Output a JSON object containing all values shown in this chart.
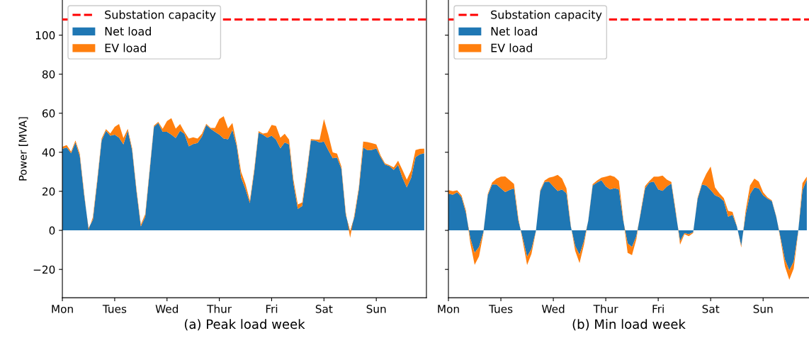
{
  "chart_data": [
    {
      "type": "area",
      "stacked": true,
      "xlabel": "(a) Peak load week",
      "ylabel": "Power [MVA]",
      "ylim": [
        -34.5,
        118
      ],
      "categories": [
        "Mon",
        null,
        null,
        null,
        null,
        null,
        null,
        null,
        null,
        null,
        null,
        null,
        "Tues",
        null,
        null,
        null,
        null,
        null,
        null,
        null,
        null,
        null,
        null,
        null,
        "Wed",
        null,
        null,
        null,
        null,
        null,
        null,
        null,
        null,
        null,
        null,
        null,
        "Thur",
        null,
        null,
        null,
        null,
        null,
        null,
        null,
        null,
        null,
        null,
        null,
        "Fri",
        null,
        null,
        null,
        null,
        null,
        null,
        null,
        null,
        null,
        null,
        null,
        "Sat",
        null,
        null,
        null,
        null,
        null,
        null,
        null,
        null,
        null,
        null,
        null,
        "Sun",
        null,
        null,
        null,
        null,
        null,
        null,
        null,
        null,
        null,
        null,
        null
      ],
      "yticks": [
        {
          "value": -20,
          "label": "−20"
        },
        0,
        20,
        40,
        60,
        80,
        100
      ],
      "legend": "top left",
      "ref_lines": [
        {
          "axis": "y",
          "value": 108,
          "label": "Substation capacity",
          "color": "#ff0000",
          "line_style": "dashed"
        }
      ],
      "series": [
        {
          "name": "Net load",
          "color": "#1f77b4",
          "values": [
            41.8,
            42.5,
            39.5,
            45,
            38,
            18,
            1,
            5.5,
            25,
            46,
            51,
            48.5,
            49,
            47.5,
            44,
            51,
            41,
            20,
            2,
            7,
            30,
            53,
            55,
            50.5,
            50.5,
            49,
            47.3,
            51,
            49.5,
            43,
            44.2,
            44.8,
            48,
            54,
            52,
            50.5,
            49,
            47,
            46.7,
            51.5,
            43,
            27,
            21.2,
            14,
            30,
            50,
            49,
            47.5,
            48.5,
            46.5,
            42,
            45,
            44,
            24,
            11,
            12.5,
            28,
            46,
            46,
            45,
            45.5,
            41,
            37,
            37.3,
            31.5,
            8,
            -0.5,
            7,
            21,
            42.5,
            41,
            41.2,
            42,
            37.5,
            33.7,
            33,
            31,
            33.5,
            27,
            22,
            27,
            37.5,
            39,
            39.5
          ]
        },
        {
          "name": "EV load",
          "color": "#ff7f0e",
          "values": [
            1.1,
            1.2,
            0.8,
            1,
            1.2,
            1.1,
            -1,
            1.3,
            1.2,
            1,
            0.8,
            1.2,
            4,
            7,
            3.3,
            1,
            1,
            1.1,
            1,
            1.3,
            1,
            0.7,
            0.6,
            1.5,
            5.5,
            8.5,
            4.8,
            3.5,
            1,
            4,
            3.5,
            2.2,
            1.5,
            0.6,
            0.5,
            2,
            8,
            11.5,
            5.5,
            3.5,
            1.2,
            3,
            2.6,
            1.3,
            1.2,
            0.8,
            0.6,
            2.5,
            5.5,
            7,
            5.5,
            4.5,
            2.5,
            2,
            2.3,
            1.8,
            1.5,
            0.8,
            0.5,
            1.5,
            11.5,
            8,
            3,
            2,
            1.2,
            1.3,
            -3.3,
            1.3,
            1.2,
            3,
            4.2,
            3.5,
            2,
            0.8,
            0.6,
            0.4,
            1.2,
            2.2,
            4,
            4,
            3.7,
            3.6,
            2.8,
            2.4
          ]
        }
      ]
    },
    {
      "type": "area",
      "stacked": true,
      "xlabel": "(b) Min load week",
      "ylim": [
        -34.5,
        118
      ],
      "tick_labels": "x",
      "categories": [
        "Mon",
        null,
        null,
        null,
        null,
        null,
        null,
        null,
        null,
        null,
        null,
        null,
        "Tues",
        null,
        null,
        null,
        null,
        null,
        null,
        null,
        null,
        null,
        null,
        null,
        "Wed",
        null,
        null,
        null,
        null,
        null,
        null,
        null,
        null,
        null,
        null,
        null,
        "Thur",
        null,
        null,
        null,
        null,
        null,
        null,
        null,
        null,
        null,
        null,
        null,
        "Fri",
        null,
        null,
        null,
        null,
        null,
        null,
        null,
        null,
        null,
        null,
        null,
        "Sat",
        null,
        null,
        null,
        null,
        null,
        null,
        null,
        null,
        null,
        null,
        null,
        "Sun",
        null,
        null,
        null,
        null,
        null,
        null,
        null,
        null,
        null,
        null
      ],
      "yticks": [
        -20,
        0,
        20,
        40,
        60,
        80,
        100
      ],
      "legend": "top left",
      "ref_lines": [
        {
          "axis": "y",
          "value": 108,
          "label": "Substation capacity",
          "color": "#ff0000",
          "line_style": "dashed"
        }
      ],
      "series": [
        {
          "name": "Net load",
          "color": "#1f77b4",
          "values": [
            18.8,
            18.3,
            19.5,
            17,
            9,
            -4,
            -11.5,
            -8.5,
            -1,
            18,
            23.5,
            23.5,
            21.5,
            19.6,
            20.7,
            21.5,
            5,
            -4,
            -13.5,
            -9.5,
            -0.5,
            20,
            24.8,
            25,
            22.5,
            20.2,
            21,
            19,
            2,
            -8,
            -12.5,
            -5.5,
            5,
            23,
            24.5,
            25.7,
            22.5,
            21,
            21.6,
            21,
            5,
            -6.7,
            -8.5,
            -3,
            9,
            21.5,
            24.5,
            25,
            21,
            20.3,
            22.5,
            24,
            9,
            -5.5,
            -1.4,
            -2,
            -1,
            16,
            23.5,
            23,
            20.7,
            18,
            17,
            15,
            7,
            8,
            2,
            -8,
            8,
            18.5,
            22,
            21.5,
            18,
            16.3,
            15,
            7,
            -4,
            -15,
            -20.5,
            -16,
            -1,
            20.6,
            26
          ]
        },
        {
          "name": "EV load",
          "color": "#ff7f0e",
          "values": [
            1.8,
            1.8,
            1,
            0.9,
            1.2,
            -2.5,
            -6.2,
            -4.8,
            -0.5,
            0.6,
            1,
            3,
            6,
            8,
            5,
            2.3,
            1.3,
            -1.5,
            -4.3,
            -2.5,
            -0.2,
            0.6,
            0.7,
            2,
            5,
            8.2,
            5.5,
            2.5,
            0.5,
            -2.5,
            -4.3,
            -2,
            0.3,
            0.6,
            1,
            1.3,
            5,
            7.2,
            5.8,
            4.3,
            1,
            -4.8,
            -4.2,
            -1.5,
            0.8,
            1.2,
            0.8,
            2.5,
            6.5,
            7.8,
            3.5,
            0.8,
            1.2,
            -1.8,
            -0.6,
            -1,
            -0.3,
            0.6,
            0.7,
            6,
            12,
            4,
            2,
            1.5,
            3,
            1.5,
            0.2,
            -0.8,
            2,
            4.5,
            4.5,
            3.5,
            1.5,
            0.6,
            0.4,
            0.3,
            -1,
            -3.5,
            -4.8,
            -3.6,
            -0.5,
            3.6,
            1.5
          ]
        }
      ]
    }
  ]
}
